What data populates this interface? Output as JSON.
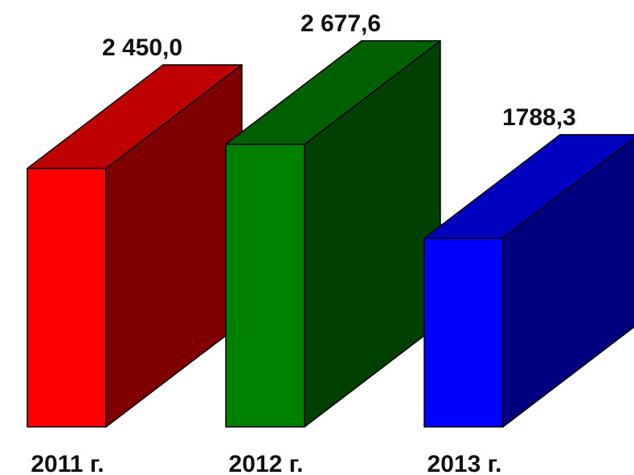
{
  "chart_data": {
    "type": "bar",
    "categories": [
      "2011 г.",
      "2012 г.",
      "2013 г."
    ],
    "values": [
      2450.0,
      2677.6,
      1788.3
    ],
    "value_labels": [
      "2 450,0",
      "2 677,6",
      "1788,3"
    ],
    "colors": {
      "front": [
        "#ff0000",
        "#008000",
        "#0000ff"
      ],
      "top": [
        "#bf0000",
        "#006000",
        "#0000bf"
      ],
      "side": [
        "#800000",
        "#004000",
        "#000080"
      ]
    },
    "title": "",
    "xlabel": "",
    "ylabel": ""
  }
}
